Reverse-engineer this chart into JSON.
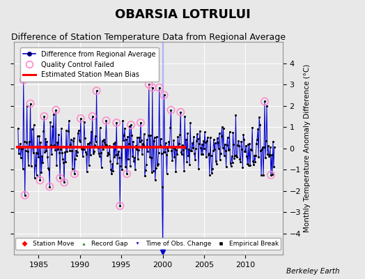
{
  "title": "OBARSIA LOTRULUI",
  "subtitle": "Difference of Station Temperature Data from Regional Average",
  "ylabel": "Monthly Temperature Anomaly Difference (°C)",
  "xlabel_credit": "Berkeley Earth",
  "ylim": [
    -5,
    5
  ],
  "xlim": [
    1982.0,
    2014.5
  ],
  "xticks": [
    1985,
    1990,
    1995,
    2000,
    2005,
    2010
  ],
  "yticks": [
    -4,
    -3,
    -2,
    -1,
    0,
    1,
    2,
    3,
    4
  ],
  "bias_value": 0.05,
  "bias_start": 1982.3,
  "bias_end": 2002.8,
  "line_color": "#0000cc",
  "marker_color": "#000000",
  "qc_color": "#ff88cc",
  "bias_color": "#ff0000",
  "background_color": "#e8e8e8",
  "title_fontsize": 13,
  "subtitle_fontsize": 9
}
